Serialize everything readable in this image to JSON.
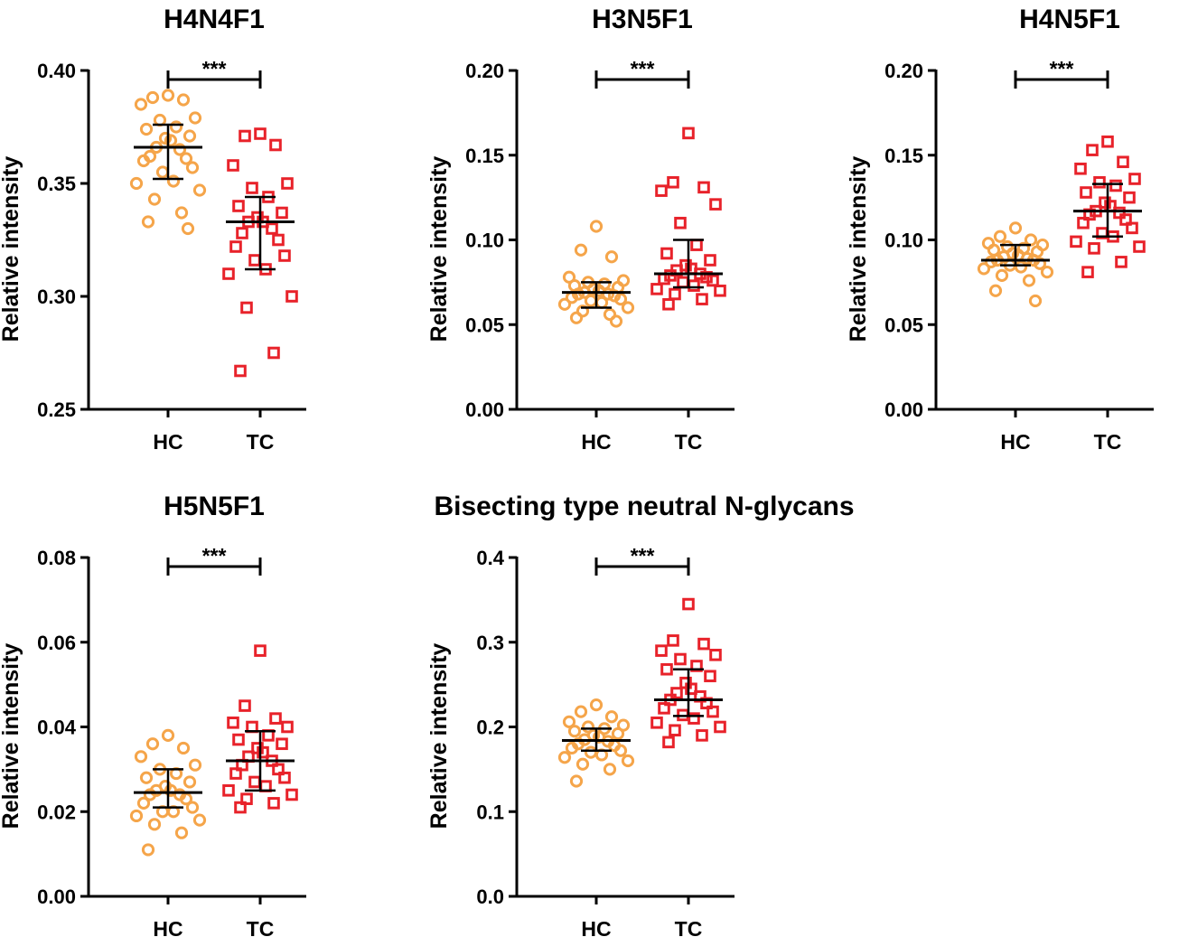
{
  "colors": {
    "hc": "#F5A54A",
    "tc": "#E8222A",
    "axis": "#000000"
  },
  "chart_data": [
    {
      "type": "scatter",
      "title": "H4N4F1",
      "ylabel": "Relative intensity",
      "categories": [
        "HC",
        "TC"
      ],
      "ylim": [
        0.25,
        0.4
      ],
      "yticks": [
        0.25,
        0.3,
        0.35,
        0.4
      ],
      "tick_labels": [
        "0.25",
        "0.30",
        "0.35",
        "0.40"
      ],
      "significance": "***",
      "series": [
        {
          "name": "HC",
          "marker": "circle",
          "mean": 0.366,
          "err_low": 0.352,
          "err_high": 0.376,
          "values": [
            0.389,
            0.388,
            0.387,
            0.385,
            0.379,
            0.378,
            0.375,
            0.374,
            0.371,
            0.37,
            0.369,
            0.366,
            0.365,
            0.362,
            0.361,
            0.36,
            0.357,
            0.355,
            0.351,
            0.35,
            0.347,
            0.343,
            0.337,
            0.333,
            0.33
          ]
        },
        {
          "name": "TC",
          "marker": "square",
          "mean": 0.333,
          "err_low": 0.312,
          "err_high": 0.344,
          "values": [
            0.372,
            0.371,
            0.367,
            0.358,
            0.35,
            0.348,
            0.344,
            0.34,
            0.337,
            0.335,
            0.333,
            0.333,
            0.33,
            0.328,
            0.325,
            0.322,
            0.318,
            0.316,
            0.312,
            0.31,
            0.3,
            0.295,
            0.275,
            0.267
          ]
        }
      ]
    },
    {
      "type": "scatter",
      "title": "H3N5F1",
      "ylabel": "Relative intensity",
      "categories": [
        "HC",
        "TC"
      ],
      "ylim": [
        0,
        0.2
      ],
      "yticks": [
        0,
        0.05,
        0.1,
        0.15,
        0.2
      ],
      "tick_labels": [
        "0.00",
        "0.05",
        "0.10",
        "0.15",
        "0.20"
      ],
      "significance": "***",
      "series": [
        {
          "name": "HC",
          "marker": "circle",
          "mean": 0.069,
          "err_low": 0.06,
          "err_high": 0.075,
          "values": [
            0.108,
            0.094,
            0.09,
            0.078,
            0.076,
            0.075,
            0.074,
            0.073,
            0.072,
            0.071,
            0.07,
            0.069,
            0.068,
            0.068,
            0.067,
            0.066,
            0.065,
            0.064,
            0.063,
            0.062,
            0.06,
            0.058,
            0.056,
            0.054,
            0.052
          ]
        },
        {
          "name": "TC",
          "marker": "square",
          "mean": 0.08,
          "err_low": 0.072,
          "err_high": 0.1,
          "values": [
            0.163,
            0.134,
            0.131,
            0.129,
            0.121,
            0.11,
            0.097,
            0.092,
            0.088,
            0.085,
            0.083,
            0.082,
            0.08,
            0.079,
            0.078,
            0.077,
            0.076,
            0.075,
            0.073,
            0.071,
            0.07,
            0.068,
            0.065,
            0.062
          ]
        }
      ]
    },
    {
      "type": "scatter",
      "title": "H4N5F1",
      "ylabel": "Relative intensity",
      "categories": [
        "HC",
        "TC"
      ],
      "ylim": [
        0,
        0.2
      ],
      "yticks": [
        0,
        0.05,
        0.1,
        0.15,
        0.2
      ],
      "tick_labels": [
        "0.00",
        "0.05",
        "0.10",
        "0.15",
        "0.20"
      ],
      "significance": "***",
      "series": [
        {
          "name": "HC",
          "marker": "circle",
          "mean": 0.088,
          "err_low": 0.085,
          "err_high": 0.097,
          "values": [
            0.107,
            0.102,
            0.1,
            0.098,
            0.097,
            0.096,
            0.095,
            0.094,
            0.093,
            0.092,
            0.091,
            0.09,
            0.089,
            0.088,
            0.088,
            0.087,
            0.086,
            0.085,
            0.084,
            0.083,
            0.081,
            0.079,
            0.076,
            0.07,
            0.064
          ]
        },
        {
          "name": "TC",
          "marker": "square",
          "mean": 0.117,
          "err_low": 0.102,
          "err_high": 0.133,
          "values": [
            0.158,
            0.153,
            0.146,
            0.142,
            0.136,
            0.134,
            0.132,
            0.128,
            0.125,
            0.122,
            0.12,
            0.117,
            0.116,
            0.115,
            0.112,
            0.11,
            0.107,
            0.104,
            0.102,
            0.099,
            0.096,
            0.095,
            0.087,
            0.081
          ]
        }
      ]
    },
    {
      "type": "scatter",
      "title": "H5N5F1",
      "ylabel": "Relative intensity",
      "categories": [
        "HC",
        "TC"
      ],
      "ylim": [
        0,
        0.08
      ],
      "yticks": [
        0,
        0.02,
        0.04,
        0.06,
        0.08
      ],
      "tick_labels": [
        "0.00",
        "0.02",
        "0.04",
        "0.06",
        "0.08"
      ],
      "significance": "***",
      "series": [
        {
          "name": "HC",
          "marker": "circle",
          "mean": 0.0245,
          "err_low": 0.021,
          "err_high": 0.03,
          "values": [
            0.038,
            0.036,
            0.035,
            0.033,
            0.031,
            0.03,
            0.029,
            0.028,
            0.027,
            0.026,
            0.025,
            0.025,
            0.024,
            0.024,
            0.023,
            0.022,
            0.021,
            0.02,
            0.02,
            0.019,
            0.018,
            0.017,
            0.015,
            0.011
          ]
        },
        {
          "name": "TC",
          "marker": "square",
          "mean": 0.032,
          "err_low": 0.025,
          "err_high": 0.039,
          "values": [
            0.058,
            0.045,
            0.042,
            0.041,
            0.04,
            0.04,
            0.038,
            0.037,
            0.036,
            0.035,
            0.034,
            0.033,
            0.032,
            0.031,
            0.03,
            0.029,
            0.028,
            0.027,
            0.026,
            0.025,
            0.024,
            0.023,
            0.022,
            0.021
          ]
        }
      ]
    },
    {
      "type": "scatter",
      "title": "Bisecting type neutral N-glycans",
      "ylabel": "Relative intensity",
      "categories": [
        "HC",
        "TC"
      ],
      "ylim": [
        0,
        0.4
      ],
      "yticks": [
        0,
        0.1,
        0.2,
        0.3,
        0.4
      ],
      "tick_labels": [
        "0.0",
        "0.1",
        "0.2",
        "0.3",
        "0.4"
      ],
      "significance": "***",
      "series": [
        {
          "name": "HC",
          "marker": "circle",
          "mean": 0.184,
          "err_low": 0.172,
          "err_high": 0.198,
          "values": [
            0.226,
            0.218,
            0.212,
            0.206,
            0.202,
            0.2,
            0.198,
            0.195,
            0.192,
            0.19,
            0.188,
            0.185,
            0.183,
            0.18,
            0.178,
            0.175,
            0.172,
            0.17,
            0.167,
            0.164,
            0.16,
            0.156,
            0.15,
            0.136
          ]
        },
        {
          "name": "TC",
          "marker": "square",
          "mean": 0.232,
          "err_low": 0.213,
          "err_high": 0.268,
          "values": [
            0.345,
            0.302,
            0.298,
            0.29,
            0.285,
            0.28,
            0.272,
            0.268,
            0.26,
            0.252,
            0.245,
            0.24,
            0.236,
            0.232,
            0.228,
            0.222,
            0.218,
            0.214,
            0.21,
            0.205,
            0.2,
            0.196,
            0.19,
            0.182
          ]
        }
      ]
    }
  ]
}
